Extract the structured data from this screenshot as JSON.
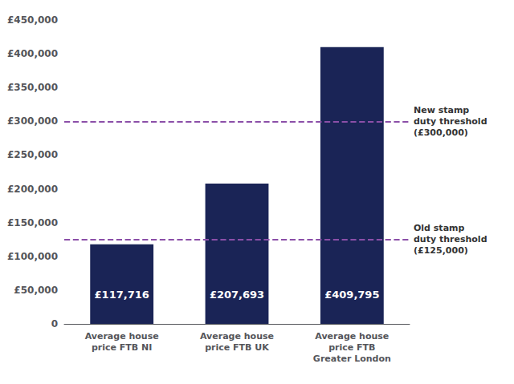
{
  "chart_data": {
    "type": "bar",
    "categories": [
      "Average house\nprice FTB NI",
      "Average house\nprice FTB UK",
      "Average house\nprice FTB\nGreater London"
    ],
    "values": [
      117716,
      207693,
      409795
    ],
    "value_labels": [
      "£117,716",
      "£207,693",
      "£409,795"
    ],
    "data_labels": true,
    "color": "#1a2456",
    "ylim": [
      0,
      450000
    ],
    "yticks": [
      0,
      {
        "value": 50000,
        "label": "£50,000"
      },
      {
        "value": 100000,
        "label": "£100,000"
      },
      {
        "value": 150000,
        "label": "£150,000"
      },
      {
        "value": 200000,
        "label": "£200,000"
      },
      {
        "value": 250000,
        "label": "£250,000"
      },
      {
        "value": 300000,
        "label": "£300,000"
      },
      {
        "value": 350000,
        "label": "£350,000"
      },
      {
        "value": 400000,
        "label": "£400,000"
      },
      {
        "value": 450000,
        "label": "£450,000"
      }
    ],
    "lines": [
      {
        "value": 300000,
        "label": "New stamp\nduty threshold\n(£300,000)",
        "color": "#8b4fa8",
        "line_style": "dashed"
      },
      {
        "value": 125000,
        "label": "Old stamp\nduty threshold\n(£125,000)",
        "color": "#8b4fa8",
        "line_style": "dashed"
      }
    ],
    "grid": false
  }
}
